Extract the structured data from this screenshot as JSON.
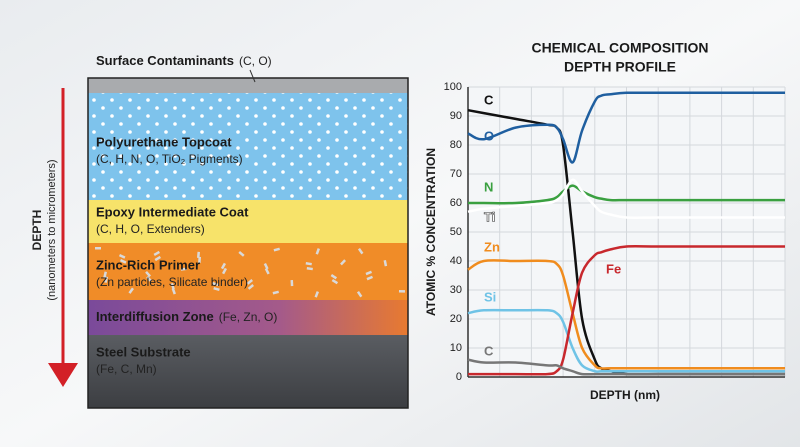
{
  "diagram": {
    "depth_label": "DEPTH",
    "depth_sublabel": "(nanometers to micrometers)",
    "layers": [
      {
        "name": "Surface Contaminants",
        "detail": "(C, O)"
      },
      {
        "name": "Polyurethane Topcoat",
        "detail": "(C, H, N, O, TiO₂ Pigments)"
      },
      {
        "name": "Epoxy Intermediate Coat",
        "detail": "(C, H, O, Extenders)"
      },
      {
        "name": "Zinc-Rich Primer",
        "detail": "(Zn particles, Silicate binder)"
      },
      {
        "name": "Interdiffusion Zone",
        "detail": "(Fe, Zn, O)"
      },
      {
        "name": "Steel Substrate",
        "detail": "(Fe, C, Mn)"
      }
    ]
  },
  "chart_data": {
    "type": "line",
    "title": [
      "CHEMICAL COMPOSITION",
      "DEPTH PROFILE"
    ],
    "x_label": "DEPTH (nm)",
    "y_label": "ATOMIC % CONCENTRATION",
    "x": [
      0,
      5,
      15,
      25,
      28,
      30,
      33,
      36,
      40,
      42,
      45,
      50,
      60,
      80,
      100
    ],
    "xlim": [
      0,
      100
    ],
    "ylim": [
      0,
      100
    ],
    "yticks": [
      0,
      10,
      20,
      30,
      40,
      50,
      60,
      70,
      80,
      90,
      100
    ],
    "grid": true,
    "series": [
      {
        "name": "C",
        "color": "#111111",
        "values": [
          92,
          91,
          89,
          87,
          86,
          80,
          50,
          20,
          6,
          3,
          2,
          1,
          1,
          1,
          1
        ]
      },
      {
        "name": "O",
        "color": "#1f5fa0",
        "values": [
          84,
          82,
          86,
          87,
          86,
          82,
          74,
          85,
          95,
          97,
          97.5,
          98,
          98,
          98,
          98
        ]
      },
      {
        "name": "N",
        "color": "#3aa040",
        "values": [
          60,
          60,
          60,
          61,
          62,
          64,
          66,
          64,
          62,
          61.5,
          61,
          61,
          61,
          61,
          61
        ]
      },
      {
        "name": "Ti",
        "color": "#ffffff",
        "values": [
          57,
          58,
          59,
          60,
          61,
          63,
          68,
          64,
          59,
          57,
          56,
          55,
          55,
          55,
          55
        ]
      },
      {
        "name": "Zn",
        "color": "#f08c1e",
        "values": [
          37,
          40,
          40,
          40,
          39,
          35,
          22,
          10,
          4,
          3,
          3,
          3,
          3,
          3,
          3
        ]
      },
      {
        "name": "Si",
        "color": "#6fc3e6",
        "values": [
          22,
          23,
          23,
          23,
          22,
          19,
          10,
          4,
          2,
          2,
          2,
          2,
          2,
          2,
          2
        ]
      },
      {
        "name": "Fe",
        "color": "#c8282d",
        "values": [
          1,
          1,
          1,
          1,
          2,
          6,
          22,
          36,
          42,
          43,
          44,
          45,
          45,
          45,
          45
        ]
      },
      {
        "name": "C",
        "color": "#777777",
        "values": [
          6,
          5,
          5,
          4,
          4,
          3,
          2,
          1,
          1,
          1,
          1,
          1,
          1,
          1,
          1
        ]
      }
    ]
  }
}
